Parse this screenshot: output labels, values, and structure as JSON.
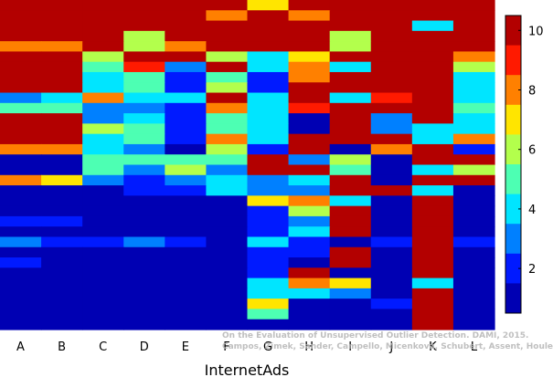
{
  "chart_data": {
    "type": "heatmap",
    "title": "",
    "xlabel": "InternetAds",
    "ylabel": "",
    "categories": [
      "A",
      "B",
      "C",
      "D",
      "E",
      "F",
      "G",
      "H",
      "I",
      "J",
      "K",
      "L"
    ],
    "colorbar": {
      "min": 0.5,
      "max": 10.5,
      "ticks": [
        2,
        4,
        6,
        8,
        10
      ],
      "colormap": "jet"
    },
    "row_count": 32,
    "matrix": [
      [
        10,
        10,
        10,
        10,
        10,
        10,
        7,
        10,
        10,
        10,
        10,
        10
      ],
      [
        10,
        10,
        10,
        10,
        10,
        8,
        10,
        8,
        10,
        10,
        10,
        10
      ],
      [
        10,
        10,
        10,
        10,
        10,
        10,
        10,
        10,
        10,
        10,
        4,
        10
      ],
      [
        10,
        10,
        10,
        6,
        10,
        10,
        10,
        10,
        6,
        10,
        10,
        10
      ],
      [
        8,
        8,
        10,
        6,
        8,
        10,
        10,
        10,
        6,
        10,
        10,
        10
      ],
      [
        10,
        10,
        6,
        10,
        10,
        6,
        4,
        7,
        10,
        10,
        10,
        8
      ],
      [
        10,
        10,
        5,
        9,
        3,
        10,
        4,
        8,
        4,
        10,
        10,
        6
      ],
      [
        10,
        10,
        4,
        5,
        2,
        5,
        2,
        8,
        10,
        10,
        10,
        4
      ],
      [
        10,
        10,
        4,
        5,
        2,
        6,
        2,
        10,
        10,
        10,
        10,
        4
      ],
      [
        3,
        4,
        8,
        4,
        4,
        10,
        4,
        10,
        4,
        9,
        10,
        4
      ],
      [
        5,
        5,
        3,
        3,
        2,
        8,
        4,
        9,
        10,
        10,
        10,
        5
      ],
      [
        10,
        10,
        3,
        4,
        2,
        5,
        4,
        1,
        10,
        3,
        10,
        4
      ],
      [
        10,
        10,
        6,
        5,
        2,
        5,
        4,
        1,
        10,
        3,
        4,
        4
      ],
      [
        10,
        10,
        4,
        5,
        2,
        8,
        4,
        10,
        10,
        10,
        4,
        8
      ],
      [
        8,
        8,
        4,
        3,
        1,
        6,
        2,
        10,
        1,
        8,
        10,
        2
      ],
      [
        1,
        1,
        5,
        5,
        5,
        5,
        10,
        3,
        6,
        1,
        10,
        10
      ],
      [
        1,
        1,
        5,
        3,
        6,
        3,
        10,
        10,
        5,
        1,
        4,
        6
      ],
      [
        8,
        7,
        3,
        2,
        3,
        4,
        3,
        4,
        10,
        1,
        10,
        10
      ],
      [
        1,
        1,
        1,
        2,
        2,
        4,
        3,
        3,
        10,
        10,
        4,
        1
      ],
      [
        1,
        1,
        1,
        1,
        1,
        1,
        7,
        8,
        4,
        1,
        10,
        1
      ],
      [
        1,
        1,
        1,
        1,
        1,
        1,
        2,
        6,
        10,
        1,
        10,
        1
      ],
      [
        2,
        2,
        1,
        1,
        1,
        1,
        2,
        3,
        10,
        1,
        10,
        1
      ],
      [
        1,
        1,
        1,
        1,
        1,
        1,
        2,
        4,
        10,
        1,
        10,
        1
      ],
      [
        3,
        2,
        2,
        3,
        2,
        1,
        4,
        2,
        1,
        2,
        10,
        2
      ],
      [
        1,
        1,
        1,
        1,
        1,
        1,
        2,
        2,
        10,
        1,
        10,
        1
      ],
      [
        2,
        1,
        1,
        1,
        1,
        1,
        2,
        1,
        10,
        1,
        10,
        1
      ],
      [
        1,
        1,
        1,
        1,
        1,
        1,
        2,
        10,
        1,
        1,
        10,
        1
      ],
      [
        1,
        1,
        1,
        1,
        1,
        1,
        4,
        8,
        7,
        1,
        4,
        1
      ],
      [
        1,
        1,
        1,
        1,
        1,
        1,
        4,
        4,
        3,
        1,
        10,
        1
      ],
      [
        1,
        1,
        1,
        1,
        1,
        1,
        7,
        1,
        1,
        2,
        10,
        1
      ],
      [
        1,
        1,
        1,
        1,
        1,
        1,
        5,
        1,
        1,
        1,
        10,
        1
      ],
      [
        1,
        1,
        1,
        1,
        1,
        1,
        1,
        1,
        1,
        1,
        10,
        1
      ]
    ]
  },
  "watermark": {
    "line1": "On the Evaluation of Unsupervised Outlier Detection. DAMI, 2015.",
    "line2": "Campos, Zimek, Sander, Campello, Micenková, Schubert, Assent, Houle"
  }
}
